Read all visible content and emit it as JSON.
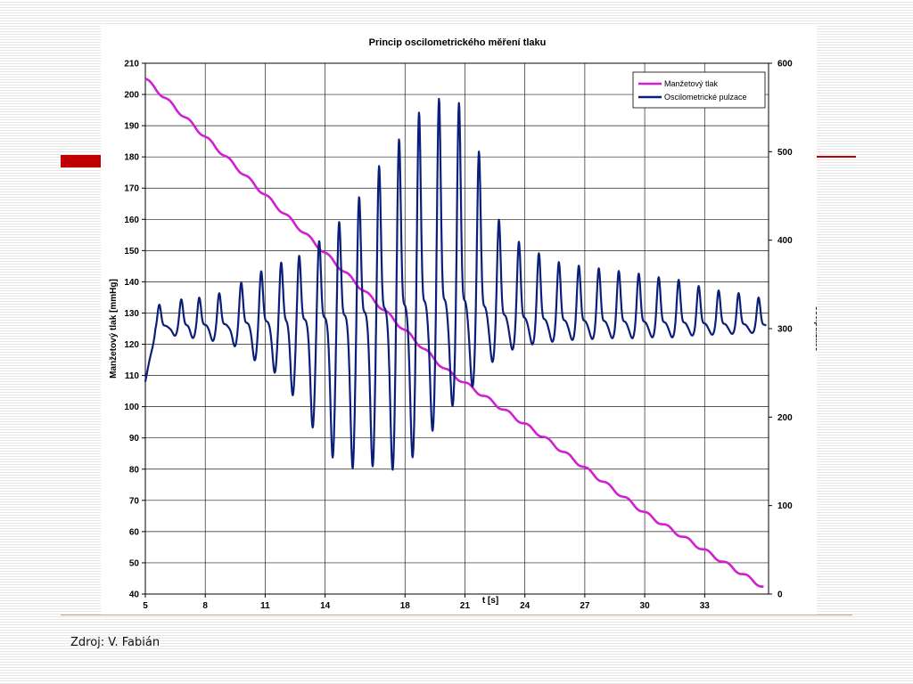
{
  "slide": {
    "source": "Zdroj: V. Fabián",
    "accent_color": "#c00000"
  },
  "chart_data": {
    "type": "line",
    "title": "Princip oscilometrického měření tlaku",
    "xlabel": "t [s]",
    "ylabel_left": "Manžetový tlak [mmHg]",
    "ylabel_right": "osc.pulzace",
    "xlim": [
      5,
      36.2
    ],
    "ylim_left": [
      40,
      210
    ],
    "ylim_right": [
      0,
      600
    ],
    "x_ticks": [
      5,
      8,
      11,
      14,
      18,
      21,
      24,
      27,
      30,
      33
    ],
    "y_ticks_left": [
      40,
      50,
      60,
      70,
      80,
      90,
      100,
      110,
      120,
      130,
      140,
      150,
      160,
      170,
      180,
      190,
      200,
      210
    ],
    "y_ticks_right": [
      0,
      100,
      200,
      300,
      400,
      500,
      600
    ],
    "grid": true,
    "legend_position": "top-right",
    "series": [
      {
        "name": "Manžetový tlak",
        "axis": "left",
        "color": "#d21fd2",
        "x": [
          5,
          10,
          15,
          20,
          25,
          30,
          36
        ],
        "y": [
          205,
          174,
          143,
          112,
          90,
          66,
          42
        ]
      },
      {
        "name": "Oscilometrické pulzace",
        "axis": "right",
        "color": "#0b1f7a",
        "baseline": 300,
        "pulses": [
          {
            "t": 5.7,
            "peak": 327,
            "trough": 294
          },
          {
            "t": 6.8,
            "peak": 333,
            "trough": 292
          },
          {
            "t": 7.7,
            "peak": 335,
            "trough": 289
          },
          {
            "t": 8.7,
            "peak": 340,
            "trough": 286
          },
          {
            "t": 9.8,
            "peak": 352,
            "trough": 280
          },
          {
            "t": 10.8,
            "peak": 365,
            "trough": 264
          },
          {
            "t": 11.8,
            "peak": 375,
            "trough": 250
          },
          {
            "t": 12.7,
            "peak": 383,
            "trough": 224
          },
          {
            "t": 13.7,
            "peak": 400,
            "trough": 188
          },
          {
            "t": 14.7,
            "peak": 422,
            "trough": 154
          },
          {
            "t": 15.7,
            "peak": 450,
            "trough": 142
          },
          {
            "t": 16.7,
            "peak": 485,
            "trough": 144
          },
          {
            "t": 17.7,
            "peak": 515,
            "trough": 140
          },
          {
            "t": 18.7,
            "peak": 545,
            "trough": 154
          },
          {
            "t": 19.7,
            "peak": 560,
            "trough": 184
          },
          {
            "t": 20.7,
            "peak": 555,
            "trough": 212
          },
          {
            "t": 21.7,
            "peak": 500,
            "trough": 234
          },
          {
            "t": 22.7,
            "peak": 423,
            "trough": 262
          },
          {
            "t": 23.7,
            "peak": 398,
            "trough": 276
          },
          {
            "t": 24.7,
            "peak": 385,
            "trough": 282
          },
          {
            "t": 25.7,
            "peak": 375,
            "trough": 285
          },
          {
            "t": 26.7,
            "peak": 371,
            "trough": 287
          },
          {
            "t": 27.7,
            "peak": 368,
            "trough": 288
          },
          {
            "t": 28.7,
            "peak": 365,
            "trough": 289
          },
          {
            "t": 29.7,
            "peak": 362,
            "trough": 289
          },
          {
            "t": 30.7,
            "peak": 358,
            "trough": 290
          },
          {
            "t": 31.7,
            "peak": 355,
            "trough": 290
          },
          {
            "t": 32.7,
            "peak": 348,
            "trough": 292
          },
          {
            "t": 33.7,
            "peak": 343,
            "trough": 293
          },
          {
            "t": 34.7,
            "peak": 340,
            "trough": 294
          },
          {
            "t": 35.7,
            "peak": 335,
            "trough": 295
          }
        ]
      }
    ]
  }
}
